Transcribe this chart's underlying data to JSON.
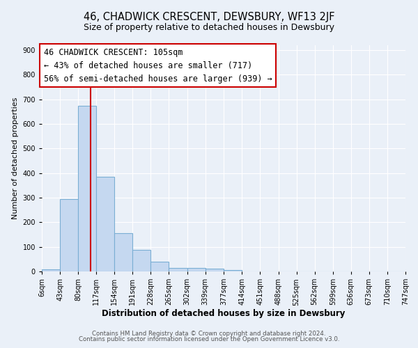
{
  "title": "46, CHADWICK CRESCENT, DEWSBURY, WF13 2JF",
  "subtitle": "Size of property relative to detached houses in Dewsbury",
  "xlabel": "Distribution of detached houses by size in Dewsbury",
  "ylabel": "Number of detached properties",
  "footnote1": "Contains HM Land Registry data © Crown copyright and database right 2024.",
  "footnote2": "Contains public sector information licensed under the Open Government Licence v3.0.",
  "bar_values": [
    8,
    295,
    675,
    385,
    155,
    87,
    40,
    15,
    13,
    10,
    5,
    0,
    0,
    0,
    0,
    0,
    0,
    0,
    0,
    0
  ],
  "bin_labels": [
    "6sqm",
    "43sqm",
    "80sqm",
    "117sqm",
    "154sqm",
    "191sqm",
    "228sqm",
    "265sqm",
    "302sqm",
    "339sqm",
    "377sqm",
    "414sqm",
    "451sqm",
    "488sqm",
    "525sqm",
    "562sqm",
    "599sqm",
    "636sqm",
    "673sqm",
    "710sqm",
    "747sqm"
  ],
  "bin_edges": [
    6,
    43,
    80,
    117,
    154,
    191,
    228,
    265,
    302,
    339,
    377,
    414,
    451,
    488,
    525,
    562,
    599,
    636,
    673,
    710,
    747
  ],
  "bar_color": "#c5d8f0",
  "bar_edge_color": "#7bafd4",
  "bar_linewidth": 0.8,
  "vline_x": 105,
  "vline_color": "#cc0000",
  "vline_linewidth": 1.5,
  "annotation_title": "46 CHADWICK CRESCENT: 105sqm",
  "annotation_line1": "← 43% of detached houses are smaller (717)",
  "annotation_line2": "56% of semi-detached houses are larger (939) →",
  "annotation_box_color": "#ffffff",
  "annotation_box_edgecolor": "#cc0000",
  "annotation_fontsize": 8.5,
  "ylim": [
    0,
    920
  ],
  "yticks": [
    0,
    100,
    200,
    300,
    400,
    500,
    600,
    700,
    800,
    900
  ],
  "bg_color": "#eaf0f8",
  "plot_bg_color": "#eaf0f8",
  "grid_color": "#ffffff",
  "title_fontsize": 10.5,
  "subtitle_fontsize": 9,
  "xlabel_fontsize": 8.5,
  "ylabel_fontsize": 8,
  "tick_fontsize": 7,
  "footnote_fontsize": 6.2
}
